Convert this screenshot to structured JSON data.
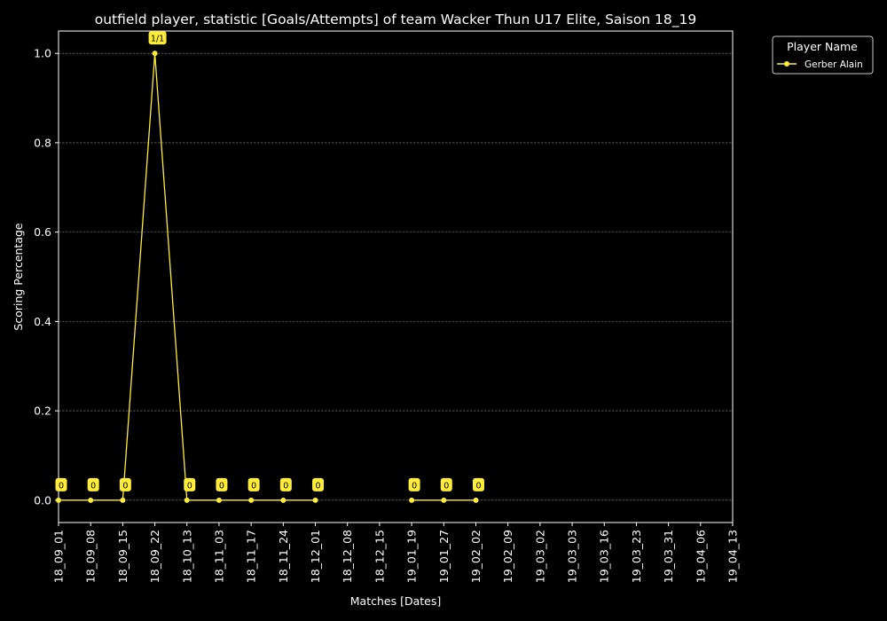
{
  "chart_data": {
    "type": "line",
    "title": "outfield player, statistic [Goals/Attempts] of team Wacker Thun U17 Elite, Saison 18_19",
    "xlabel": "Matches [Dates]",
    "ylabel": "Scoring Percentage",
    "categories": [
      "18_09_01",
      "18_09_08",
      "18_09_15",
      "18_09_22",
      "18_10_13",
      "18_11_03",
      "18_11_17",
      "18_11_24",
      "18_12_01",
      "18_12_08",
      "18_12_15",
      "19_01_19",
      "19_01_27",
      "19_02_02",
      "19_02_09",
      "19_03_02",
      "19_03_03",
      "19_03_16",
      "19_03_23",
      "19_03_31",
      "19_04_06",
      "19_04_13"
    ],
    "yticks": [
      "0.0",
      "0.2",
      "0.4",
      "0.6",
      "0.8",
      "1.0"
    ],
    "ylim": [
      -0.05,
      1.05
    ],
    "grid": true,
    "legend": {
      "title": "Player Name",
      "placement": "outside-top-right"
    },
    "series": [
      {
        "name": "Gerber Alain",
        "color": "#ffed3a",
        "values": [
          0,
          0,
          0,
          1,
          0,
          0,
          0,
          0,
          0,
          null,
          null,
          0,
          0,
          0,
          null,
          null,
          null,
          null,
          null,
          null,
          null,
          null
        ],
        "labels": [
          "0",
          "0",
          "0",
          "1/1",
          "0",
          "0",
          "0",
          "0",
          "0",
          null,
          null,
          "0",
          "0",
          "0",
          null,
          null,
          null,
          null,
          null,
          null,
          null,
          null
        ]
      }
    ]
  }
}
